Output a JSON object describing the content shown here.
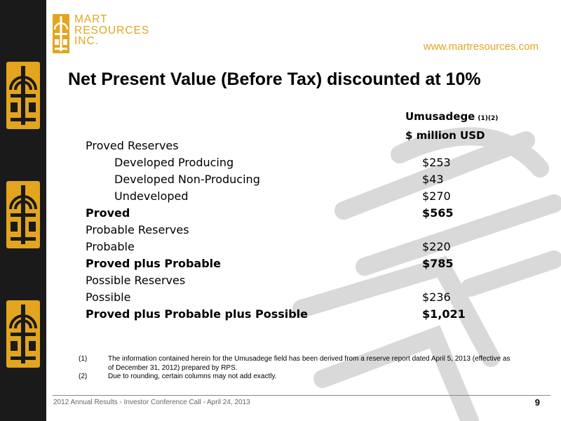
{
  "logo": {
    "lines": [
      "MART",
      "RESOURCES",
      "INC."
    ]
  },
  "website": "www.martresources.com",
  "title": "Net Present Value (Before Tax) discounted at 10%",
  "column_header": {
    "field": "Umusadege",
    "notes": "(1)(2)",
    "units": "$ million USD"
  },
  "rows": [
    {
      "label": "Proved Reserves",
      "value": ""
    },
    {
      "label": "Developed Producing",
      "value": "$253"
    },
    {
      "label": "Developed Non-Producing",
      "value": "$43"
    },
    {
      "label": "Undeveloped",
      "value": "$270"
    },
    {
      "label": "Proved",
      "value": "$565"
    },
    {
      "label": "Probable Reserves",
      "value": ""
    },
    {
      "label": "Probable",
      "value": "$220"
    },
    {
      "label": "Proved plus Probable",
      "value": "$785"
    },
    {
      "label": "Possible Reserves",
      "value": ""
    },
    {
      "label": "Possible",
      "value": "$236"
    },
    {
      "label": "Proved plus Probable plus Possible",
      "value": "$1,021"
    }
  ],
  "footnotes": [
    {
      "num": "(1)",
      "text": "The information contained herein for the Umusadege field has been derived from a reserve report dated April 5, 2013 (effective as of December 31, 2012) prepared by RPS."
    },
    {
      "num": "(2)",
      "text": "Due to rounding, certain columns may not add exactly."
    }
  ],
  "footer": {
    "text": "2012 Annual Results - Investor Conference Call - April 24, 2013",
    "page": "9"
  },
  "colors": {
    "gold": "#e3a51f",
    "sidebar": "#1a1a1a",
    "watermark": "#d9d9d9"
  }
}
